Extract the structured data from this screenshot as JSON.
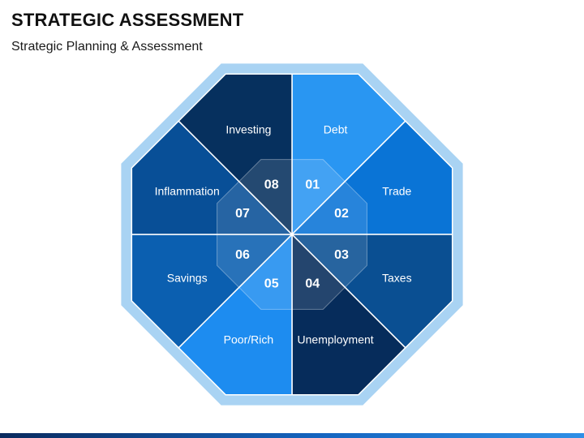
{
  "title": "STRATEGIC ASSESSMENT",
  "subtitle": "Strategic Planning & Assessment",
  "colors": {
    "border": "#a9d3f3",
    "bar": "#1f5fb0"
  },
  "segments": [
    {
      "number": "01",
      "label": "Debt",
      "color": "#2996f2"
    },
    {
      "number": "02",
      "label": "Trade",
      "color": "#0a74d6"
    },
    {
      "number": "03",
      "label": "Taxes",
      "color": "#0a4f92"
    },
    {
      "number": "04",
      "label": "Unemployment",
      "color": "#062c5b"
    },
    {
      "number": "05",
      "label": "Poor/Rich",
      "color": "#1d8cf0"
    },
    {
      "number": "06",
      "label": "Savings",
      "color": "#0b5fb0"
    },
    {
      "number": "07",
      "label": "Inflammation",
      "color": "#084f97"
    },
    {
      "number": "08",
      "label": "Investing",
      "color": "#06305e"
    }
  ]
}
